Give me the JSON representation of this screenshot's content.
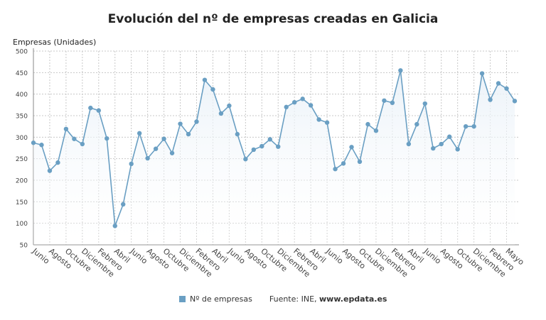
{
  "chart_data": {
    "type": "line",
    "title": "Evolución del nº de empresas creadas en Galicia",
    "ylabel": "Empresas (Unidades)",
    "xlabel": "",
    "ylim": [
      50,
      500
    ],
    "yticks": [
      50,
      100,
      150,
      200,
      250,
      300,
      350,
      400,
      450,
      500
    ],
    "grid": true,
    "legend_position": "bottom",
    "x_labels": [
      "Junio",
      "Agosto",
      "Octubre",
      "Diciembre",
      "Febrero",
      "Abril",
      "Junio",
      "Agosto",
      "Octubre",
      "Diciembre",
      "Febrero",
      "Abril",
      "Junio",
      "Agosto",
      "Octubre",
      "Diciembre",
      "Febrero",
      "Abril",
      "Junio",
      "Agosto",
      "Octubre",
      "Diciembre",
      "Febrero",
      "Abril",
      "Junio",
      "Agosto",
      "Octubre",
      "Diciembre",
      "Febrero",
      "Mayo"
    ],
    "series": [
      {
        "name": "Nº de empresas",
        "color": "#6a9fc3",
        "values": [
          287,
          282,
          222,
          241,
          319,
          296,
          284,
          368,
          362,
          297,
          94,
          144,
          238,
          309,
          251,
          273,
          296,
          263,
          331,
          307,
          336,
          433,
          411,
          355,
          373,
          307,
          249,
          271,
          279,
          295,
          278,
          370,
          381,
          389,
          374,
          341,
          334,
          226,
          239,
          277,
          243,
          330,
          315,
          385,
          380,
          455,
          284,
          330,
          378,
          274,
          284,
          301,
          272,
          325,
          325,
          448,
          387,
          425,
          413,
          384
        ]
      }
    ]
  },
  "legend": {
    "series_label": "Nº de empresas",
    "source_prefix": "Fuente: INE,",
    "source_site": "www.epdata.es"
  }
}
